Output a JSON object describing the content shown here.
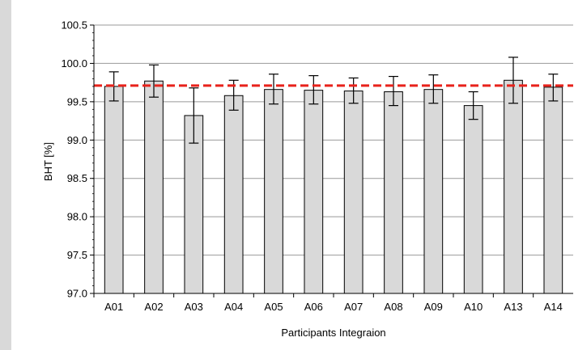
{
  "chart_data": {
    "type": "bar",
    "title": "",
    "xlabel": "Participants Integraion",
    "ylabel": "BHT [%]",
    "ylim": [
      97.0,
      100.5
    ],
    "y_ticks": [
      "97.0",
      "97.5",
      "98.0",
      "98.5",
      "99.0",
      "99.5",
      "100.0",
      "100.5"
    ],
    "categories": [
      "A01",
      "A02",
      "A03",
      "A04",
      "A05",
      "A06",
      "A07",
      "A08",
      "A09",
      "A10",
      "A13",
      "A14"
    ],
    "values": [
      99.7,
      99.77,
      99.32,
      99.58,
      99.66,
      99.65,
      99.64,
      99.63,
      99.66,
      99.45,
      99.78,
      99.69
    ],
    "error_upper": [
      99.89,
      99.98,
      99.68,
      99.78,
      99.86,
      99.84,
      99.81,
      99.83,
      99.85,
      99.63,
      100.08,
      99.86
    ],
    "error_lower": [
      99.51,
      99.56,
      98.96,
      99.39,
      99.47,
      99.47,
      99.48,
      99.45,
      99.48,
      99.27,
      99.48,
      99.51
    ],
    "reference_line": 99.71,
    "grid": "horizontal",
    "colors": {
      "bar_fill": "#d9d9d9",
      "bar_stroke": "#000000",
      "reference_line": "#e8221b",
      "grid": "#999999"
    }
  }
}
